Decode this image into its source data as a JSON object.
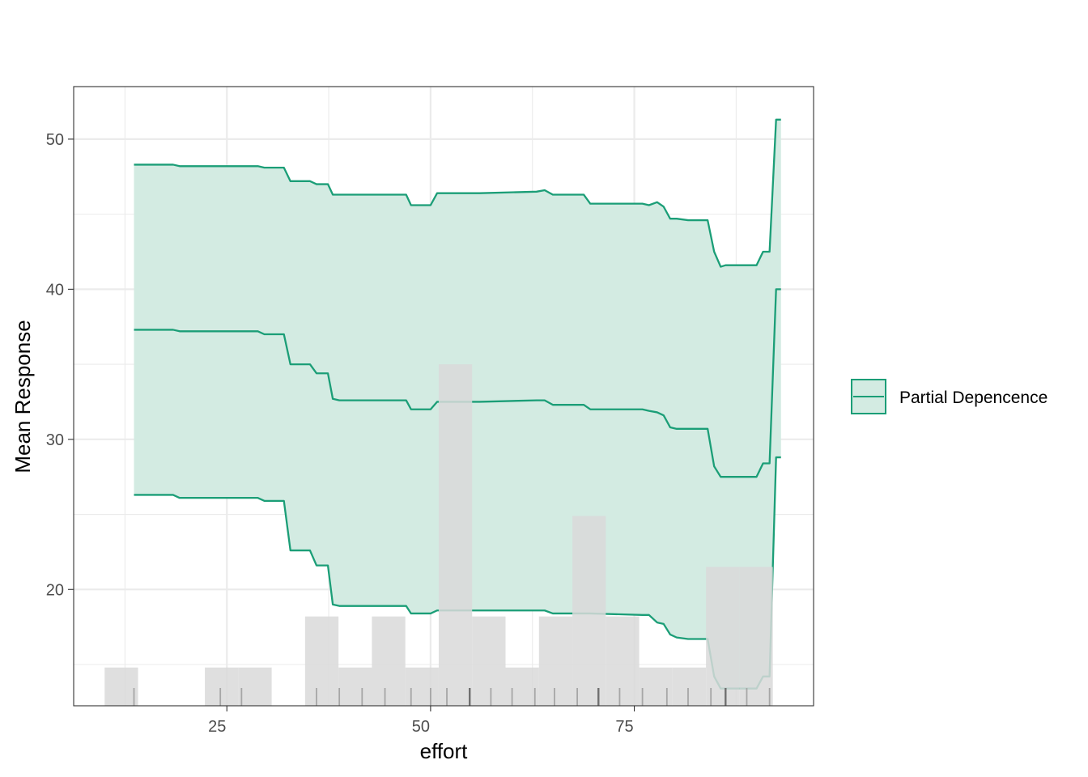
{
  "chart_data": {
    "type": "area",
    "xlabel": "effort",
    "ylabel": "Mean Response",
    "xlim": [
      6.2,
      97.0
    ],
    "ylim": [
      12.25,
      53.5
    ],
    "x_ticks": [
      25,
      50,
      75
    ],
    "y_ticks": [
      20,
      30,
      40,
      50
    ],
    "grid": true,
    "legend": {
      "position": "right",
      "entries": [
        "Partial Depencence"
      ]
    },
    "colors": {
      "line": "#1b9e77",
      "band": "#d3ebe2",
      "histogram": "#d9d9d9",
      "rug": "#a6a6a6",
      "rug_dense": "#707070",
      "panel_border": "#333333",
      "grid": "#ebebeb"
    },
    "series": [
      {
        "name": "Partial Depencence",
        "x": [
          13.6,
          18.4,
          19.2,
          28.8,
          29.6,
          32.0,
          32.8,
          35.2,
          36.0,
          37.4,
          38.0,
          38.8,
          40.0,
          47.0,
          47.6,
          50.0,
          50.8,
          54.8,
          56.0,
          63.0,
          64.0,
          65.0,
          68.8,
          69.6,
          76.0,
          76.8,
          77.8,
          78.6,
          79.4,
          80.2,
          81.6,
          84.0,
          84.8,
          85.6,
          86.2,
          90.0,
          90.8,
          91.6,
          92.4,
          93.0
        ],
        "upper": [
          48.3,
          48.3,
          48.2,
          48.2,
          48.1,
          48.1,
          47.2,
          47.2,
          47.0,
          47.0,
          46.3,
          46.3,
          46.3,
          46.3,
          45.6,
          45.6,
          46.4,
          46.4,
          46.4,
          46.5,
          46.6,
          46.3,
          46.3,
          45.7,
          45.7,
          45.6,
          45.8,
          45.5,
          44.7,
          44.7,
          44.6,
          44.6,
          42.5,
          41.5,
          41.6,
          41.6,
          42.5,
          42.5,
          51.3,
          51.3
        ],
        "mean": [
          37.3,
          37.3,
          37.2,
          37.2,
          37.0,
          37.0,
          35.0,
          35.0,
          34.4,
          34.4,
          32.7,
          32.6,
          32.6,
          32.6,
          32.0,
          32.0,
          32.5,
          32.5,
          32.5,
          32.6,
          32.6,
          32.3,
          32.3,
          32.0,
          32.0,
          31.9,
          31.8,
          31.6,
          30.8,
          30.7,
          30.7,
          30.7,
          28.2,
          27.5,
          27.5,
          27.5,
          28.4,
          28.4,
          40.0,
          40.0
        ],
        "lower": [
          26.3,
          26.3,
          26.1,
          26.1,
          25.9,
          25.9,
          22.6,
          22.6,
          21.6,
          21.6,
          19.0,
          18.9,
          18.9,
          18.9,
          18.4,
          18.4,
          18.6,
          18.6,
          18.6,
          18.6,
          18.6,
          18.4,
          18.4,
          18.4,
          18.3,
          18.3,
          17.8,
          17.7,
          17.0,
          16.8,
          16.7,
          16.7,
          14.2,
          13.4,
          13.4,
          13.4,
          14.2,
          14.2,
          28.8,
          28.8
        ]
      }
    ],
    "histogram": {
      "bin_edges": [
        10.0,
        14.1,
        18.2,
        22.3,
        26.4,
        30.5,
        34.6,
        38.7,
        42.8,
        46.9,
        51.0,
        55.1,
        59.2,
        63.3,
        67.4,
        71.5,
        75.6,
        79.7,
        83.8,
        87.9,
        92.0
      ],
      "heights": [
        14.8,
        0,
        0,
        14.8,
        14.8,
        0,
        18.2,
        14.8,
        18.2,
        14.8,
        35.0,
        18.2,
        14.8,
        18.2,
        24.9,
        18.2,
        14.8,
        14.8,
        21.5,
        21.5
      ],
      "baseline": 12.25
    },
    "rug": [
      13.6,
      24.2,
      26.8,
      36.0,
      38.8,
      41.6,
      44.4,
      47.6,
      50.0,
      52.0,
      54.8,
      57.4,
      60.0,
      62.8,
      65.2,
      68.0,
      70.6,
      73.2,
      76.0,
      79.0,
      81.6,
      84.4,
      86.2,
      88.8,
      91.6
    ],
    "rug_dense": [
      54.8,
      70.6,
      86.2
    ]
  }
}
